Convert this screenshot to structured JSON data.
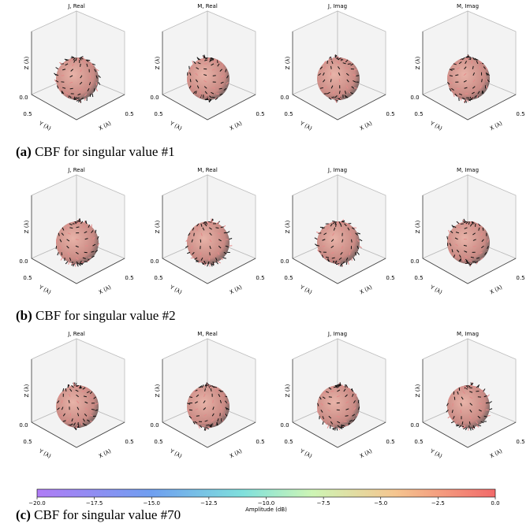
{
  "panels": [
    {
      "label": "(a)",
      "caption": "CBF for singular value #1",
      "plots": [
        "J, Real",
        "M, Real",
        "J, Imag",
        "M, Imag"
      ]
    },
    {
      "label": "(b)",
      "caption": "CBF for singular value #2",
      "plots": [
        "J, Real",
        "M, Real",
        "J, Imag",
        "M, Imag"
      ]
    },
    {
      "label": "(c)",
      "caption": "CBF for singular value #70",
      "plots": [
        "J, Real",
        "M, Real",
        "J, Imag",
        "M, Imag"
      ]
    }
  ],
  "axes": {
    "z_label": "Z (λ)",
    "y_label": "Y (λ)",
    "x_label": "X (λ)",
    "z_tick": "0.0",
    "y_tick": "0.5",
    "x_tick": "0.5"
  },
  "colorbar": {
    "label": "Amplitude (dB)",
    "lim": [
      -20,
      0
    ],
    "ticks": [
      {
        "value": -20,
        "label": "−20.0"
      },
      {
        "value": -17.5,
        "label": "−17.5"
      },
      {
        "value": -15,
        "label": "−15.0"
      },
      {
        "value": -12.5,
        "label": "−12.5"
      },
      {
        "value": -10,
        "label": "−10.0"
      },
      {
        "value": -7.5,
        "label": "−7.5"
      },
      {
        "value": -5,
        "label": "−5.0"
      },
      {
        "value": -2.5,
        "label": "−2.5"
      },
      {
        "value": 0,
        "label": "0.0"
      }
    ]
  }
}
